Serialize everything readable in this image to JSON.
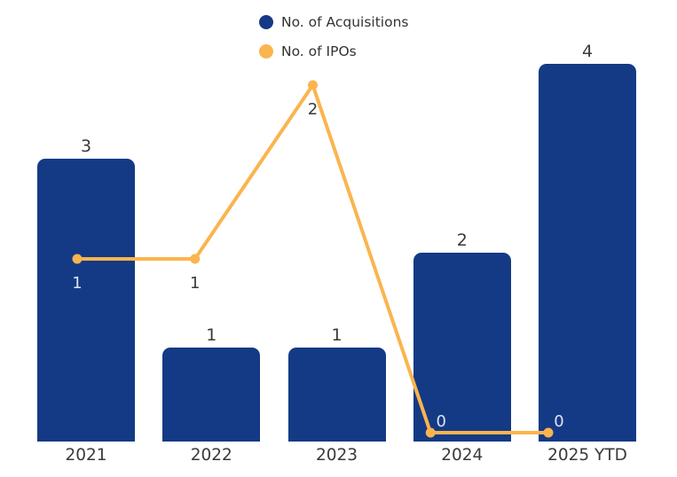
{
  "legend": {
    "items": [
      {
        "label": "No. of Acquisitions",
        "color": "#143A85"
      },
      {
        "label": "No. of IPOs",
        "color": "#FBB44E"
      }
    ]
  },
  "chart_data": {
    "type": "combo",
    "title": "",
    "xlabel": "",
    "ylabel": "",
    "categories": [
      "2021",
      "2022",
      "2023",
      "2024",
      "2025 YTD"
    ],
    "series": [
      {
        "name": "No. of Acquisitions",
        "type": "bar",
        "color": "#143A85",
        "values": [
          3,
          1,
          1,
          2,
          4
        ]
      },
      {
        "name": "No. of IPOs",
        "type": "line",
        "color": "#FBB44E",
        "values": [
          1,
          1,
          2,
          0,
          0
        ]
      }
    ],
    "bar_axis_range": [
      0,
      4
    ],
    "line_axis_range": [
      0,
      2.05
    ],
    "grid": false,
    "axes_visible": false,
    "data_labels": true,
    "legend_position": "top-center",
    "background": "#FFFFFF",
    "label_color_default": "#3A3A3A",
    "label_color_on_bar": "#DCE3F3",
    "axis_label_color": "#3A3A3A"
  }
}
